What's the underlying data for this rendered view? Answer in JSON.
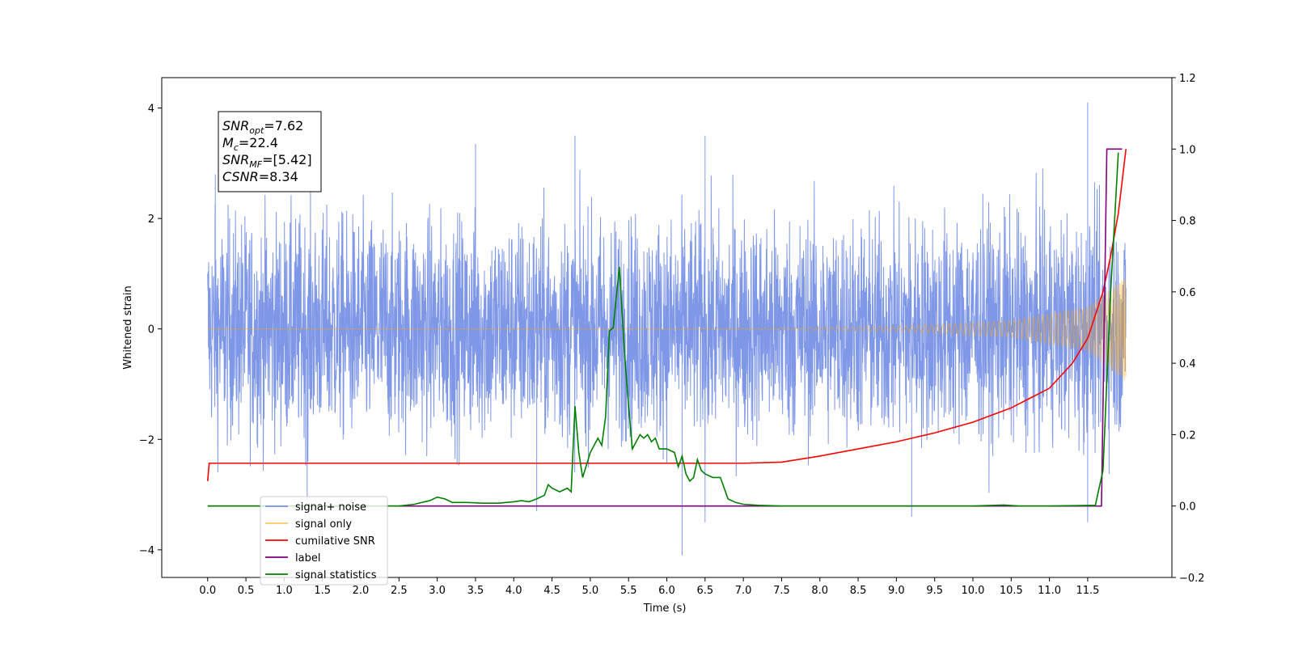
{
  "chart_data": {
    "type": "line",
    "title": "",
    "xlabel": "Time (s)",
    "ylabel": "Whitened strain",
    "xlim": [
      -0.6,
      12.6
    ],
    "ylim": [
      -4.5,
      4.55
    ],
    "y2lim": [
      -0.2,
      1.2
    ],
    "xticks": [
      "0.0",
      "0.5",
      "1.0",
      "1.5",
      "2.0",
      "2.5",
      "3.0",
      "3.5",
      "4.0",
      "4.5",
      "5.0",
      "5.5",
      "6.0",
      "6.5",
      "7.0",
      "7.5",
      "8.0",
      "8.5",
      "9.0",
      "9.5",
      "10.0",
      "10.5",
      "11.0",
      "11.5"
    ],
    "yticks": [
      "4",
      "2",
      "0",
      "−2",
      "−4"
    ],
    "y2ticks": [
      "1.2",
      "1.0",
      "0.8",
      "0.6",
      "0.4",
      "0.2",
      "0.0",
      "−0.2"
    ],
    "grid": false,
    "legend_position": "lower-left",
    "annotation": {
      "lines": [
        {
          "name": "SNR",
          "sub": "opt",
          "value": "=7.62"
        },
        {
          "name": "M",
          "sub": "c",
          "value": "=22.4"
        },
        {
          "name": "SNR",
          "sub": "MF",
          "value": "=[5.42]"
        },
        {
          "name": "CSNR",
          "sub": "",
          "value": "=8.34"
        }
      ]
    },
    "series": [
      {
        "name": "signal+ noise",
        "axis": "left",
        "color": "#7891e6",
        "kind": "noise",
        "t_range": [
          0.0,
          12.0
        ],
        "envelope": [
          [
            0.0,
            1.6
          ],
          [
            4.0,
            1.6
          ],
          [
            11.5,
            1.6
          ],
          [
            12.0,
            1.6
          ]
        ],
        "extremes_high": [
          [
            0.1,
            2.8
          ],
          [
            3.5,
            3.35
          ],
          [
            4.8,
            3.5
          ],
          [
            6.5,
            3.5
          ],
          [
            11.5,
            4.1
          ]
        ],
        "extremes_low": [
          [
            1.3,
            -3.1
          ],
          [
            4.3,
            -3.3
          ],
          [
            6.2,
            -4.1
          ],
          [
            6.5,
            -3.5
          ],
          [
            9.2,
            -3.4
          ],
          [
            11.5,
            -3.5
          ]
        ]
      },
      {
        "name": "signal only",
        "axis": "left",
        "color": "#ffa500",
        "kind": "chirp",
        "t_range": [
          0.0,
          12.0
        ],
        "amplitude_points": [
          [
            0.0,
            0.0
          ],
          [
            7.0,
            0.01
          ],
          [
            9.0,
            0.05
          ],
          [
            10.5,
            0.15
          ],
          [
            11.5,
            0.4
          ],
          [
            12.0,
            0.95
          ]
        ]
      },
      {
        "name": "cumilative SNR",
        "axis": "right",
        "color": "#ff0000",
        "x": [
          0.0,
          0.02,
          1.0,
          3.0,
          5.0,
          7.0,
          7.5,
          8.0,
          8.5,
          9.0,
          9.5,
          10.0,
          10.5,
          11.0,
          11.3,
          11.5,
          11.7,
          11.8,
          11.9,
          12.0
        ],
        "values": [
          0.07,
          0.12,
          0.12,
          0.12,
          0.12,
          0.12,
          0.123,
          0.14,
          0.16,
          0.18,
          0.205,
          0.235,
          0.275,
          0.33,
          0.4,
          0.47,
          0.6,
          0.7,
          0.82,
          1.0
        ]
      },
      {
        "name": "label",
        "axis": "right",
        "color": "#800080",
        "x": [
          0.0,
          11.68,
          11.75,
          11.95
        ],
        "values": [
          0.0,
          0.0,
          1.0,
          1.0
        ]
      },
      {
        "name": "signal statistics",
        "axis": "right",
        "color": "#008000",
        "x": [
          0.0,
          2.5,
          2.7,
          2.9,
          3.0,
          3.1,
          3.2,
          3.4,
          3.6,
          3.8,
          4.0,
          4.1,
          4.2,
          4.3,
          4.4,
          4.45,
          4.5,
          4.6,
          4.7,
          4.75,
          4.8,
          4.85,
          4.9,
          5.0,
          5.1,
          5.15,
          5.2,
          5.25,
          5.3,
          5.38,
          5.45,
          5.5,
          5.55,
          5.6,
          5.65,
          5.7,
          5.75,
          5.8,
          5.85,
          5.9,
          6.0,
          6.1,
          6.15,
          6.2,
          6.25,
          6.3,
          6.35,
          6.4,
          6.45,
          6.5,
          6.6,
          6.7,
          6.8,
          6.9,
          7.0,
          7.2,
          7.5,
          8.0,
          9.0,
          10.0,
          10.4,
          10.6,
          11.0,
          11.6,
          11.7,
          11.8,
          11.9
        ],
        "values": [
          0.0,
          0.0,
          0.005,
          0.015,
          0.025,
          0.02,
          0.01,
          0.01,
          0.008,
          0.008,
          0.012,
          0.015,
          0.012,
          0.02,
          0.03,
          0.06,
          0.05,
          0.04,
          0.05,
          0.04,
          0.28,
          0.15,
          0.08,
          0.15,
          0.19,
          0.17,
          0.25,
          0.49,
          0.5,
          0.67,
          0.42,
          0.28,
          0.16,
          0.18,
          0.2,
          0.19,
          0.2,
          0.18,
          0.19,
          0.16,
          0.16,
          0.15,
          0.11,
          0.14,
          0.09,
          0.07,
          0.08,
          0.13,
          0.1,
          0.09,
          0.08,
          0.08,
          0.02,
          0.01,
          0.005,
          0.002,
          0.0,
          0.0,
          0.0,
          0.0,
          0.003,
          0.0,
          0.0,
          0.002,
          0.1,
          0.6,
          0.99
        ]
      }
    ],
    "legend": [
      {
        "label": "signal+ noise",
        "color": "#7891e6"
      },
      {
        "label": "signal only",
        "color": "#ffc966"
      },
      {
        "label": "cumilative SNR",
        "color": "#ff0000"
      },
      {
        "label": "label",
        "color": "#800080"
      },
      {
        "label": "signal statistics",
        "color": "#008000"
      }
    ]
  }
}
